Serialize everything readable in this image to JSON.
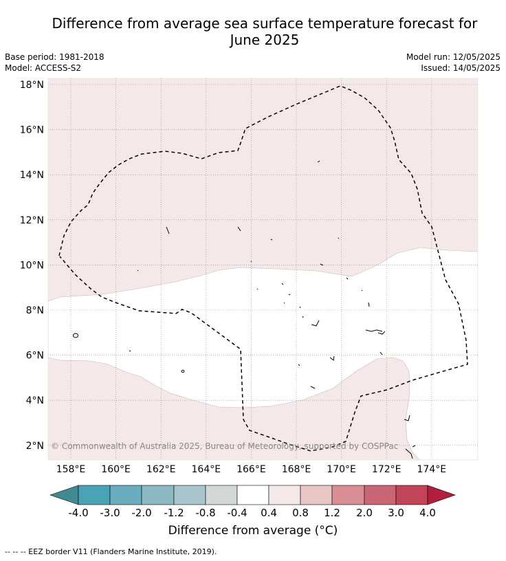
{
  "title_line1": "Difference from average sea surface temperature forecast for",
  "title_line2": "June 2025",
  "base_period": "Base period: 1981-2018",
  "model": "Model: ACCESS-S2",
  "model_run": "Model run: 12/05/2025",
  "issued": "Issued: 14/05/2025",
  "copyright": "© Commonwealth of Australia 2025, Bureau of Meteorology, supported by COSPPac",
  "lat_labels": [
    "18°N",
    "16°N",
    "14°N",
    "12°N",
    "10°N",
    "8°N",
    "6°N",
    "4°N",
    "2°N"
  ],
  "lon_labels": [
    "158°E",
    "160°E",
    "162°E",
    "164°E",
    "166°E",
    "168°E",
    "170°E",
    "172°E",
    "174°E"
  ],
  "colorbar": {
    "ticks": [
      "-4.0",
      "-3.0",
      "-2.0",
      "-1.2",
      "-0.8",
      "-0.4",
      "0.4",
      "0.8",
      "1.2",
      "2.0",
      "3.0",
      "4.0"
    ],
    "colors": [
      "#3f8a93",
      "#4aa3b5",
      "#6aadbf",
      "#8cb8c4",
      "#a8c6cb",
      "#d2d8d8",
      "#ffffff",
      "#f4e8e8",
      "#e9c6c5",
      "#d98d94",
      "#cb6774",
      "#c14556",
      "#b21f3e"
    ],
    "label": "Difference from average (°C)"
  },
  "footnote": "--  --  -- EEZ border V11 (Flanders Marine Institute, 2019).",
  "map_colors": {
    "light_warm": "#f4e8e8",
    "neutral": "#ffffff",
    "grid": "#888888",
    "eez": "#000000"
  }
}
